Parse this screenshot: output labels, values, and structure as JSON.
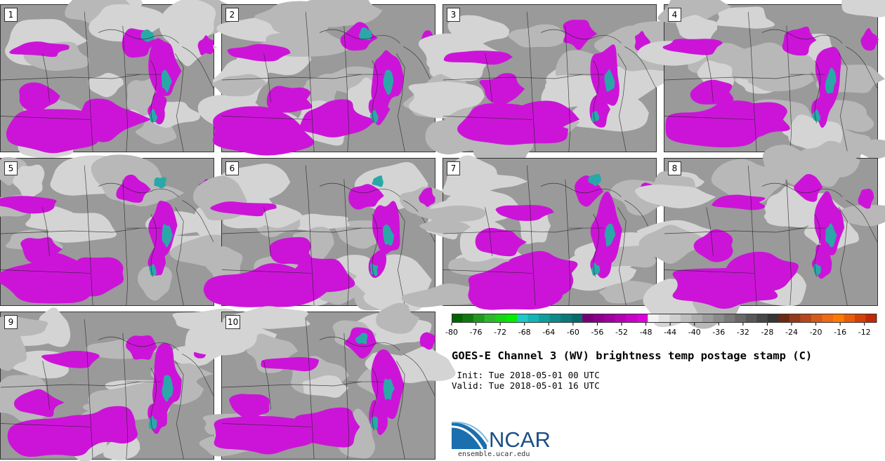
{
  "title": "GOES-E Channel 3 (WV) brightness temp postage stamp (C)",
  "init": " Init: Tue 2018-05-01 00 UTC",
  "valid": "Valid: Tue 2018-05-01 16 UTC",
  "panels": [
    {
      "label": "1"
    },
    {
      "label": "2"
    },
    {
      "label": "3"
    },
    {
      "label": "4"
    },
    {
      "label": "5"
    },
    {
      "label": "6"
    },
    {
      "label": "7"
    },
    {
      "label": "8"
    },
    {
      "label": "9"
    },
    {
      "label": "10"
    }
  ],
  "colorbar": {
    "colors": [
      "#006400",
      "#107a10",
      "#1f9a1f",
      "#2cb82c",
      "#18d418",
      "#00ee00",
      "#20c8c8",
      "#14b4b4",
      "#0f9e9e",
      "#0d8a8a",
      "#0b7a7a",
      "#096a6a",
      "#7a007a",
      "#8c008c",
      "#a000a0",
      "#b400b4",
      "#c800c8",
      "#dc00dc",
      "#f2f2f2",
      "#e0e0e0",
      "#cfcfcf",
      "#bebebe",
      "#adadad",
      "#9c9c9c",
      "#8b8b8b",
      "#7a7a7a",
      "#696969",
      "#585858",
      "#474747",
      "#363636",
      "#6b2a12",
      "#94391a",
      "#b5481e",
      "#d45a1c",
      "#ee6a14",
      "#ff7a00",
      "#e85c0a",
      "#d4400a",
      "#c02808"
    ],
    "tick_labels": [
      "-80",
      "-76",
      "-72",
      "-68",
      "-64",
      "-60",
      "-56",
      "-52",
      "-48",
      "-44",
      "-40",
      "-36",
      "-32",
      "-28",
      "-24",
      "-20",
      "-16",
      "-12"
    ],
    "tick_values": [
      -80,
      -76,
      -72,
      -68,
      -64,
      -60,
      -56,
      -52,
      -48,
      -44,
      -40,
      -36,
      -32,
      -28,
      -24,
      -20,
      -16,
      -12
    ],
    "range": [
      -80,
      -10
    ]
  },
  "logo": {
    "text": "NCAR",
    "site": "ensemble.ucar.edu",
    "brand_color": "#1a6fae"
  },
  "colors": {
    "dry": "#9a9a9a",
    "mid": "#b8b8b8",
    "light": "#d4d4d4",
    "moist": "#cc14d8",
    "cold": "#2aa8a8",
    "border": "#333333"
  }
}
